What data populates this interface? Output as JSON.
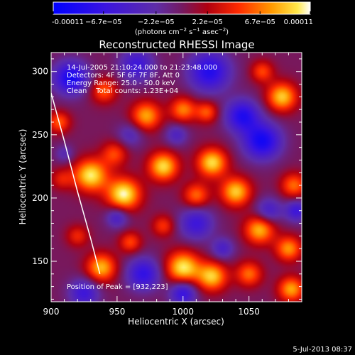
{
  "chart_data": {
    "type": "heatmap",
    "title": "Reconstructed RHESSI Image",
    "xlabel": "Heliocentric X (arcsec)",
    "ylabel": "Heliocentric Y (arcsec)",
    "xlim": [
      900,
      1090
    ],
    "ylim": [
      118,
      315
    ],
    "xticks": [
      900,
      950,
      1000,
      1050
    ],
    "yticks": [
      150,
      200,
      250,
      300
    ],
    "colorbar": {
      "min": -0.00011,
      "max": 0.00011,
      "tick_values": [
        -0.00011,
        -6.7e-05,
        -2.2e-05,
        2.2e-05,
        6.7e-05,
        0.00011
      ],
      "tick_labels": [
        "-0.00011",
        "−6.7e−05",
        "−2.2e−05",
        "2.2e−05",
        "6.7e−05",
        "0.00011"
      ],
      "unit_pre": "(photons cm",
      "unit_sup1": "−2",
      "unit_mid": " s",
      "unit_sup2": "−1",
      "unit_mid2": " asec",
      "unit_sup3": "−2",
      "unit_post": ")"
    },
    "annotations": {
      "time_range": "14-Jul-2005 21:10:24.000 to 21:23:48.000",
      "detectors": "Detectors: 4F 5F 6F 7F 8F, Att 0",
      "energy": "Energy Range: 25.0 - 50.0 keV",
      "clean": "Clean    Total counts: 1.23E+04",
      "peak": "Position of Peak = [932,223]"
    },
    "limb_points": [
      [
        900,
        283
      ],
      [
        910,
        245
      ],
      [
        920,
        205
      ],
      [
        930,
        168
      ],
      [
        937,
        140
      ]
    ],
    "peaks": [
      [
        906,
        260,
        0.55,
        6
      ],
      [
        930,
        218,
        0.95,
        9
      ],
      [
        908,
        215,
        0.35,
        6
      ],
      [
        955,
        203,
        1.0,
        9
      ],
      [
        948,
        235,
        0.5,
        7
      ],
      [
        985,
        225,
        0.9,
        8
      ],
      [
        1022,
        228,
        0.9,
        8
      ],
      [
        1040,
        205,
        0.85,
        8
      ],
      [
        1010,
        202,
        0.6,
        7
      ],
      [
        972,
        265,
        0.75,
        8
      ],
      [
        1000,
        270,
        0.65,
        7
      ],
      [
        1018,
        268,
        0.55,
        6
      ],
      [
        940,
        285,
        0.55,
        7
      ],
      [
        1075,
        280,
        0.85,
        8
      ],
      [
        1060,
        300,
        0.5,
        6
      ],
      [
        1084,
        210,
        0.6,
        7
      ],
      [
        1058,
        175,
        0.8,
        8
      ],
      [
        1080,
        160,
        0.7,
        7
      ],
      [
        1050,
        140,
        0.6,
        7
      ],
      [
        1082,
        128,
        0.75,
        7
      ],
      [
        938,
        145,
        0.8,
        8
      ],
      [
        960,
        165,
        0.5,
        6
      ],
      [
        1000,
        145,
        0.95,
        9
      ],
      [
        1022,
        138,
        0.85,
        8
      ],
      [
        985,
        178,
        0.45,
        6
      ],
      [
        920,
        170,
        0.4,
        6
      ],
      [
        915,
        295,
        -0.9,
        9
      ],
      [
        965,
        305,
        -0.6,
        9
      ],
      [
        1020,
        300,
        -0.8,
        11
      ],
      [
        1060,
        245,
        -0.9,
        10
      ],
      [
        1045,
        265,
        -0.8,
        9
      ],
      [
        1010,
        180,
        -0.6,
        9
      ],
      [
        970,
        140,
        -0.7,
        9
      ],
      [
        925,
        125,
        -0.6,
        8
      ],
      [
        1065,
        190,
        -0.5,
        7
      ],
      [
        960,
        250,
        -0.35,
        7
      ],
      [
        995,
        250,
        -0.4,
        6
      ],
      [
        1000,
        125,
        -0.7,
        7
      ],
      [
        1086,
        190,
        -0.6,
        6
      ],
      [
        1030,
        160,
        -0.45,
        6
      ],
      [
        950,
        185,
        -0.5,
        6
      ],
      [
        910,
        235,
        -0.3,
        5
      ]
    ]
  },
  "footer": {
    "timestamp": "5-Jul-2013 08:37"
  }
}
